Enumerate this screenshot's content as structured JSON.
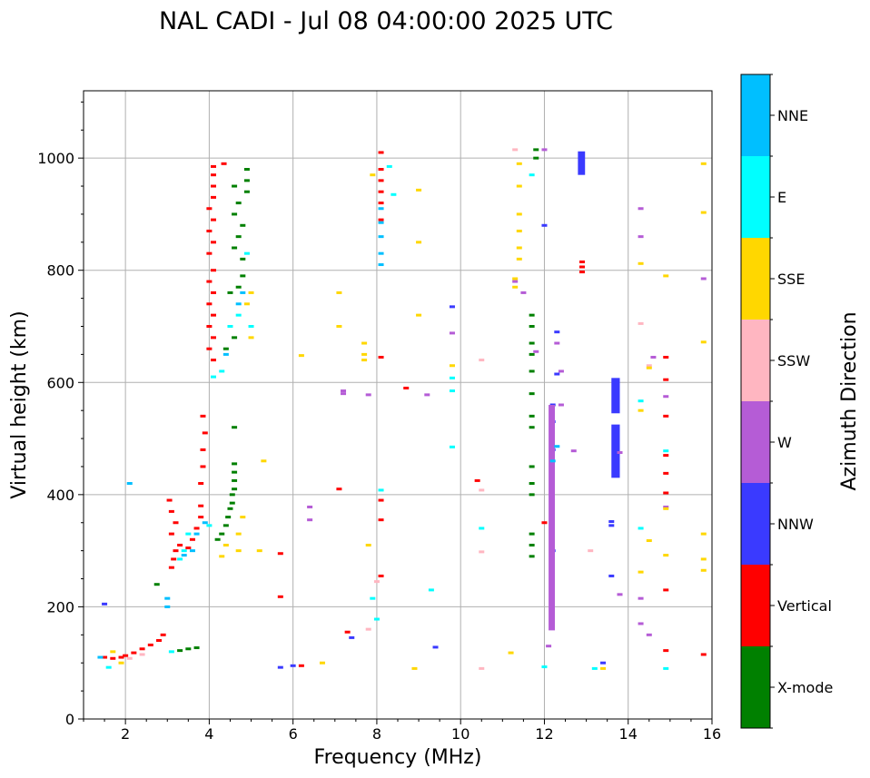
{
  "chart_data": {
    "type": "scatter",
    "title": "NAL CADI - Jul 08 04:00:00 2025 UTC",
    "xlabel": "Frequency (MHz)",
    "ylabel": "Virtual height (km)",
    "xlim": [
      1,
      16
    ],
    "ylim": [
      0,
      1120
    ],
    "xticks": [
      2,
      4,
      6,
      8,
      10,
      12,
      14,
      16
    ],
    "yticks": [
      0,
      200,
      400,
      600,
      800,
      1000
    ],
    "grid": true,
    "colorbar": {
      "title": "Azimuth Direction",
      "categories": [
        {
          "name": "X-mode",
          "color": "#008000"
        },
        {
          "name": "Vertical",
          "color": "#ff0000"
        },
        {
          "name": "NNW",
          "color": "#3a3aff"
        },
        {
          "name": "W",
          "color": "#b55cd6"
        },
        {
          "name": "SSW",
          "color": "#ffb6c1"
        },
        {
          "name": "SSE",
          "color": "#ffd700"
        },
        {
          "name": "E",
          "color": "#00ffff"
        },
        {
          "name": "NNE",
          "color": "#00bfff"
        }
      ]
    },
    "series": [
      {
        "name": "X-mode",
        "points": [
          [
            2.75,
            240
          ],
          [
            3.3,
            122
          ],
          [
            3.5,
            125
          ],
          [
            3.7,
            127
          ],
          [
            4.2,
            320
          ],
          [
            4.3,
            330
          ],
          [
            4.4,
            345
          ],
          [
            4.45,
            360
          ],
          [
            4.5,
            375
          ],
          [
            4.55,
            385
          ],
          [
            4.55,
            400
          ],
          [
            4.6,
            410
          ],
          [
            4.6,
            425
          ],
          [
            4.6,
            440
          ],
          [
            4.6,
            455
          ],
          [
            4.6,
            520
          ],
          [
            4.4,
            660
          ],
          [
            4.6,
            680
          ],
          [
            4.5,
            760
          ],
          [
            4.7,
            770
          ],
          [
            4.8,
            790
          ],
          [
            4.8,
            820
          ],
          [
            4.6,
            840
          ],
          [
            4.7,
            860
          ],
          [
            4.8,
            880
          ],
          [
            4.6,
            900
          ],
          [
            4.7,
            920
          ],
          [
            4.9,
            940
          ],
          [
            4.6,
            950
          ],
          [
            4.9,
            960
          ],
          [
            4.9,
            980
          ],
          [
            11.7,
            290
          ],
          [
            11.7,
            310
          ],
          [
            11.7,
            330
          ],
          [
            11.7,
            400
          ],
          [
            11.7,
            420
          ],
          [
            11.7,
            450
          ],
          [
            11.7,
            520
          ],
          [
            11.7,
            540
          ],
          [
            11.7,
            580
          ],
          [
            11.7,
            620
          ],
          [
            11.7,
            650
          ],
          [
            11.7,
            670
          ],
          [
            11.7,
            700
          ],
          [
            11.7,
            720
          ],
          [
            11.8,
            1000
          ],
          [
            11.8,
            1015
          ]
        ]
      },
      {
        "name": "Vertical",
        "points": [
          [
            1.5,
            110
          ],
          [
            1.7,
            108
          ],
          [
            1.9,
            110
          ],
          [
            2.0,
            113
          ],
          [
            2.2,
            118
          ],
          [
            2.4,
            125
          ],
          [
            2.6,
            132
          ],
          [
            2.8,
            140
          ],
          [
            2.9,
            150
          ],
          [
            3.1,
            270
          ],
          [
            3.15,
            285
          ],
          [
            3.2,
            300
          ],
          [
            3.3,
            310
          ],
          [
            3.1,
            330
          ],
          [
            3.2,
            350
          ],
          [
            3.1,
            370
          ],
          [
            3.05,
            390
          ],
          [
            3.5,
            305
          ],
          [
            3.6,
            320
          ],
          [
            3.7,
            340
          ],
          [
            3.8,
            360
          ],
          [
            3.8,
            380
          ],
          [
            3.8,
            420
          ],
          [
            3.85,
            450
          ],
          [
            3.85,
            480
          ],
          [
            3.9,
            510
          ],
          [
            3.85,
            540
          ],
          [
            4.1,
            640
          ],
          [
            4.0,
            660
          ],
          [
            4.1,
            680
          ],
          [
            4.0,
            700
          ],
          [
            4.1,
            720
          ],
          [
            4.0,
            740
          ],
          [
            4.1,
            760
          ],
          [
            4.0,
            780
          ],
          [
            4.1,
            800
          ],
          [
            4.0,
            830
          ],
          [
            4.1,
            850
          ],
          [
            4.0,
            870
          ],
          [
            4.1,
            890
          ],
          [
            4.0,
            910
          ],
          [
            4.1,
            930
          ],
          [
            4.1,
            950
          ],
          [
            4.1,
            970
          ],
          [
            4.1,
            985
          ],
          [
            4.35,
            990
          ],
          [
            5.7,
            218
          ],
          [
            5.7,
            295
          ],
          [
            6.2,
            95
          ],
          [
            7.3,
            155
          ],
          [
            7.1,
            410
          ],
          [
            8.1,
            255
          ],
          [
            8.1,
            355
          ],
          [
            8.1,
            390
          ],
          [
            8.1,
            645
          ],
          [
            8.1,
            890
          ],
          [
            8.1,
            920
          ],
          [
            8.1,
            940
          ],
          [
            8.1,
            960
          ],
          [
            8.1,
            980
          ],
          [
            8.1,
            1010
          ],
          [
            8.7,
            590
          ],
          [
            10.4,
            425
          ],
          [
            12.0,
            350
          ],
          [
            12.9,
            797
          ],
          [
            12.9,
            806
          ],
          [
            12.9,
            815
          ],
          [
            12.9,
            980
          ],
          [
            14.9,
            122
          ],
          [
            14.9,
            230
          ],
          [
            14.9,
            403
          ],
          [
            14.9,
            438
          ],
          [
            14.9,
            470
          ],
          [
            14.9,
            540
          ],
          [
            14.9,
            605
          ],
          [
            14.9,
            645
          ],
          [
            15.8,
            115
          ]
        ]
      },
      {
        "name": "NNW",
        "points": [
          [
            1.5,
            205
          ],
          [
            5.7,
            92
          ],
          [
            6.0,
            95
          ],
          [
            7.4,
            145
          ],
          [
            9.4,
            128
          ],
          [
            9.8,
            735
          ],
          [
            12.0,
            880
          ],
          [
            12.3,
            690
          ],
          [
            12.3,
            615
          ],
          [
            12.2,
            560
          ],
          [
            12.2,
            530
          ],
          [
            12.2,
            480
          ],
          [
            12.2,
            300
          ],
          [
            13.4,
            100
          ],
          [
            13.6,
            255
          ],
          [
            13.6,
            345
          ],
          [
            13.6,
            352
          ]
        ],
        "blocks": [
          [
            12.8,
            12.97,
            970,
            1012
          ],
          [
            13.6,
            13.8,
            430,
            525
          ],
          [
            13.6,
            13.8,
            545,
            608
          ]
        ]
      },
      {
        "name": "W",
        "points": [
          [
            6.4,
            355
          ],
          [
            6.4,
            378
          ],
          [
            7.2,
            580
          ],
          [
            7.2,
            585
          ],
          [
            7.8,
            578
          ],
          [
            9.2,
            578
          ],
          [
            9.8,
            688
          ],
          [
            11.3,
            780
          ],
          [
            11.5,
            760
          ],
          [
            11.8,
            655
          ],
          [
            12.0,
            1015
          ],
          [
            12.3,
            670
          ],
          [
            12.4,
            620
          ],
          [
            12.4,
            560
          ],
          [
            12.7,
            478
          ],
          [
            12.1,
            130
          ],
          [
            13.8,
            222
          ],
          [
            13.8,
            475
          ],
          [
            14.3,
            170
          ],
          [
            14.3,
            215
          ],
          [
            14.3,
            860
          ],
          [
            14.3,
            910
          ],
          [
            14.5,
            150
          ],
          [
            14.6,
            645
          ],
          [
            14.9,
            378
          ],
          [
            14.9,
            575
          ],
          [
            15.8,
            785
          ]
        ],
        "blocks": [
          [
            12.1,
            12.25,
            158,
            560
          ]
        ]
      },
      {
        "name": "SSW",
        "points": [
          [
            2.1,
            108
          ],
          [
            2.4,
            115
          ],
          [
            7.8,
            160
          ],
          [
            8.0,
            245
          ],
          [
            10.5,
            298
          ],
          [
            10.5,
            408
          ],
          [
            10.5,
            640
          ],
          [
            10.5,
            90
          ],
          [
            11.3,
            1015
          ],
          [
            13.1,
            300
          ],
          [
            14.3,
            705
          ],
          [
            14.5,
            630
          ]
        ]
      },
      {
        "name": "SSE",
        "points": [
          [
            1.7,
            120
          ],
          [
            1.9,
            100
          ],
          [
            4.3,
            290
          ],
          [
            4.4,
            310
          ],
          [
            4.7,
            300
          ],
          [
            4.7,
            330
          ],
          [
            4.8,
            360
          ],
          [
            4.9,
            740
          ],
          [
            5.0,
            760
          ],
          [
            5.0,
            680
          ],
          [
            5.2,
            300
          ],
          [
            5.3,
            460
          ],
          [
            6.2,
            648
          ],
          [
            6.7,
            100
          ],
          [
            7.1,
            700
          ],
          [
            7.1,
            760
          ],
          [
            7.7,
            650
          ],
          [
            7.7,
            640
          ],
          [
            7.7,
            670
          ],
          [
            7.8,
            310
          ],
          [
            7.9,
            970
          ],
          [
            8.9,
            90
          ],
          [
            9.0,
            720
          ],
          [
            9.0,
            850
          ],
          [
            9.0,
            943
          ],
          [
            9.8,
            630
          ],
          [
            11.2,
            118
          ],
          [
            11.4,
            820
          ],
          [
            11.4,
            840
          ],
          [
            11.4,
            870
          ],
          [
            11.4,
            900
          ],
          [
            11.4,
            950
          ],
          [
            11.4,
            990
          ],
          [
            11.3,
            770
          ],
          [
            11.3,
            785
          ],
          [
            13.4,
            90
          ],
          [
            14.3,
            262
          ],
          [
            14.3,
            550
          ],
          [
            14.3,
            812
          ],
          [
            14.5,
            318
          ],
          [
            14.5,
            626
          ],
          [
            14.9,
            292
          ],
          [
            14.9,
            375
          ],
          [
            14.9,
            790
          ],
          [
            15.8,
            265
          ],
          [
            15.8,
            285
          ],
          [
            15.8,
            330
          ],
          [
            15.8,
            672
          ],
          [
            15.8,
            903
          ],
          [
            15.8,
            990
          ]
        ]
      },
      {
        "name": "E",
        "points": [
          [
            1.6,
            92
          ],
          [
            3.1,
            120
          ],
          [
            3.3,
            285
          ],
          [
            3.4,
            300
          ],
          [
            3.5,
            330
          ],
          [
            4.0,
            345
          ],
          [
            4.1,
            610
          ],
          [
            4.3,
            620
          ],
          [
            4.5,
            700
          ],
          [
            4.7,
            720
          ],
          [
            4.9,
            830
          ],
          [
            5.0,
            700
          ],
          [
            7.9,
            215
          ],
          [
            8.0,
            178
          ],
          [
            8.1,
            408
          ],
          [
            8.3,
            985
          ],
          [
            8.4,
            935
          ],
          [
            9.3,
            230
          ],
          [
            9.8,
            485
          ],
          [
            9.8,
            585
          ],
          [
            9.8,
            608
          ],
          [
            10.5,
            340
          ],
          [
            11.7,
            970
          ],
          [
            12.0,
            93
          ],
          [
            13.2,
            90
          ],
          [
            14.3,
            340
          ],
          [
            14.3,
            567
          ],
          [
            14.9,
            90
          ],
          [
            14.9,
            478
          ]
        ]
      },
      {
        "name": "NNE",
        "points": [
          [
            1.4,
            110
          ],
          [
            2.1,
            420
          ],
          [
            3.0,
            200
          ],
          [
            3.0,
            215
          ],
          [
            3.4,
            292
          ],
          [
            3.6,
            300
          ],
          [
            3.7,
            330
          ],
          [
            3.9,
            350
          ],
          [
            4.4,
            650
          ],
          [
            4.7,
            740
          ],
          [
            4.8,
            760
          ],
          [
            8.1,
            810
          ],
          [
            8.1,
            830
          ],
          [
            8.1,
            860
          ],
          [
            8.1,
            885
          ],
          [
            8.1,
            910
          ],
          [
            12.2,
            460
          ],
          [
            12.3,
            486
          ]
        ]
      }
    ]
  }
}
